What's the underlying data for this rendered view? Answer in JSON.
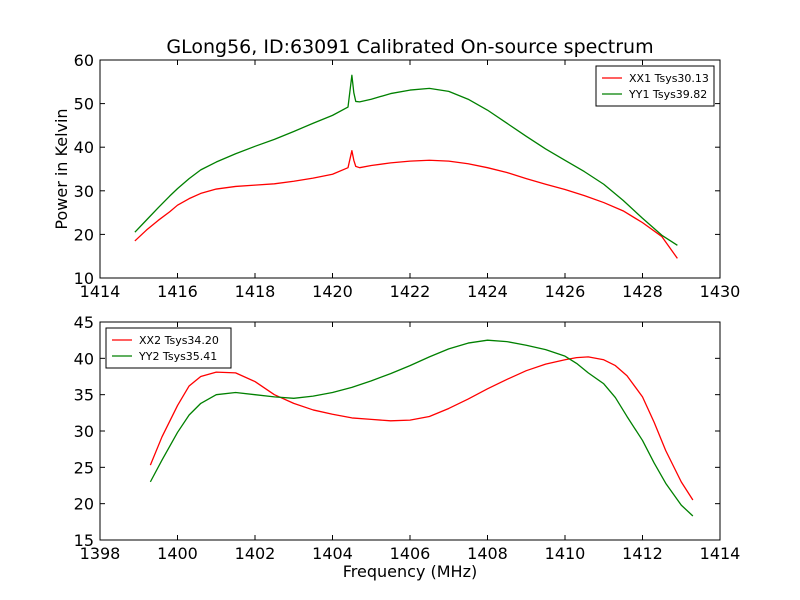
{
  "title": "GLong56, ID:63091 Calibrated On-source spectrum",
  "chart_data": [
    {
      "type": "line",
      "ylabel": "Power in Kelvin",
      "xlabel": "",
      "xlim": [
        1414,
        1430
      ],
      "ylim": [
        10,
        60
      ],
      "xticks": [
        "1414",
        "1416",
        "1418",
        "1420",
        "1422",
        "1424",
        "1426",
        "1428",
        "1430"
      ],
      "yticks": [
        "10",
        "20",
        "30",
        "40",
        "50",
        "60"
      ],
      "legend_position": "top-right",
      "series": [
        {
          "name": "XX1 Tsys30.13",
          "color": "#ff0000",
          "x": [
            1414.9,
            1415.2,
            1415.5,
            1415.8,
            1416.0,
            1416.3,
            1416.6,
            1417.0,
            1417.5,
            1418.0,
            1418.5,
            1419.0,
            1419.5,
            1420.0,
            1420.4,
            1420.5,
            1420.55,
            1420.6,
            1420.7,
            1421.0,
            1421.5,
            1422.0,
            1422.5,
            1423.0,
            1423.5,
            1424.0,
            1424.5,
            1425.0,
            1425.5,
            1426.0,
            1426.5,
            1427.0,
            1427.5,
            1428.0,
            1428.5,
            1428.9
          ],
          "y": [
            18.5,
            21.0,
            23.2,
            25.2,
            26.7,
            28.2,
            29.4,
            30.4,
            31.0,
            31.3,
            31.6,
            32.2,
            32.9,
            33.8,
            35.3,
            39.2,
            37.0,
            35.6,
            35.3,
            35.8,
            36.4,
            36.8,
            37.0,
            36.8,
            36.2,
            35.3,
            34.2,
            32.8,
            31.5,
            30.3,
            28.9,
            27.3,
            25.4,
            22.7,
            19.5,
            14.5
          ]
        },
        {
          "name": "YY1 Tsys39.82",
          "color": "#008000",
          "x": [
            1414.9,
            1415.2,
            1415.5,
            1415.8,
            1416.0,
            1416.3,
            1416.6,
            1417.0,
            1417.5,
            1418.0,
            1418.5,
            1419.0,
            1419.5,
            1420.0,
            1420.4,
            1420.5,
            1420.55,
            1420.6,
            1420.7,
            1421.0,
            1421.5,
            1422.0,
            1422.5,
            1423.0,
            1423.5,
            1424.0,
            1424.5,
            1425.0,
            1425.5,
            1426.0,
            1426.5,
            1427.0,
            1427.5,
            1428.0,
            1428.5,
            1428.9
          ],
          "y": [
            20.5,
            23.3,
            26.1,
            28.8,
            30.5,
            32.8,
            34.8,
            36.6,
            38.5,
            40.2,
            41.8,
            43.6,
            45.5,
            47.3,
            49.2,
            56.5,
            52.5,
            50.5,
            50.4,
            51.0,
            52.3,
            53.1,
            53.5,
            52.8,
            51.0,
            48.5,
            45.5,
            42.5,
            39.6,
            37.0,
            34.4,
            31.5,
            27.8,
            23.7,
            19.8,
            17.5
          ]
        }
      ]
    },
    {
      "type": "line",
      "ylabel": "",
      "xlabel": "Frequency (MHz)",
      "xlim": [
        1398,
        1414
      ],
      "ylim": [
        15,
        45
      ],
      "xticks": [
        "1398",
        "1400",
        "1402",
        "1404",
        "1406",
        "1408",
        "1410",
        "1412",
        "1414"
      ],
      "yticks": [
        "15",
        "20",
        "25",
        "30",
        "35",
        "40",
        "45"
      ],
      "legend_position": "top-left",
      "series": [
        {
          "name": "XX2 Tsys34.20",
          "color": "#ff0000",
          "x": [
            1399.3,
            1399.6,
            1400.0,
            1400.3,
            1400.6,
            1401.0,
            1401.5,
            1402.0,
            1402.5,
            1403.0,
            1403.5,
            1404.0,
            1404.5,
            1405.0,
            1405.5,
            1406.0,
            1406.5,
            1407.0,
            1407.5,
            1408.0,
            1408.5,
            1409.0,
            1409.5,
            1410.0,
            1410.3,
            1410.6,
            1411.0,
            1411.3,
            1411.6,
            1412.0,
            1412.3,
            1412.6,
            1413.0,
            1413.3
          ],
          "y": [
            25.3,
            29.2,
            33.5,
            36.2,
            37.5,
            38.1,
            38.0,
            36.8,
            35.0,
            33.8,
            32.9,
            32.3,
            31.8,
            31.6,
            31.4,
            31.5,
            32.0,
            33.1,
            34.4,
            35.8,
            37.1,
            38.3,
            39.2,
            39.8,
            40.1,
            40.2,
            39.8,
            39.0,
            37.6,
            34.7,
            31.2,
            27.3,
            23.0,
            20.5
          ]
        },
        {
          "name": "YY2 Tsys35.41",
          "color": "#008000",
          "x": [
            1399.3,
            1399.6,
            1400.0,
            1400.3,
            1400.6,
            1401.0,
            1401.5,
            1402.0,
            1402.5,
            1403.0,
            1403.5,
            1404.0,
            1404.5,
            1405.0,
            1405.5,
            1406.0,
            1406.5,
            1407.0,
            1407.5,
            1408.0,
            1408.5,
            1409.0,
            1409.5,
            1410.0,
            1410.3,
            1410.6,
            1411.0,
            1411.3,
            1411.6,
            1412.0,
            1412.3,
            1412.6,
            1413.0,
            1413.3
          ],
          "y": [
            23.0,
            26.0,
            29.8,
            32.2,
            33.8,
            35.0,
            35.3,
            35.0,
            34.7,
            34.5,
            34.8,
            35.3,
            36.0,
            36.9,
            37.9,
            39.0,
            40.2,
            41.3,
            42.1,
            42.5,
            42.3,
            41.8,
            41.2,
            40.3,
            39.3,
            38.0,
            36.5,
            34.6,
            32.0,
            28.7,
            25.6,
            22.8,
            19.8,
            18.3
          ]
        }
      ]
    }
  ]
}
